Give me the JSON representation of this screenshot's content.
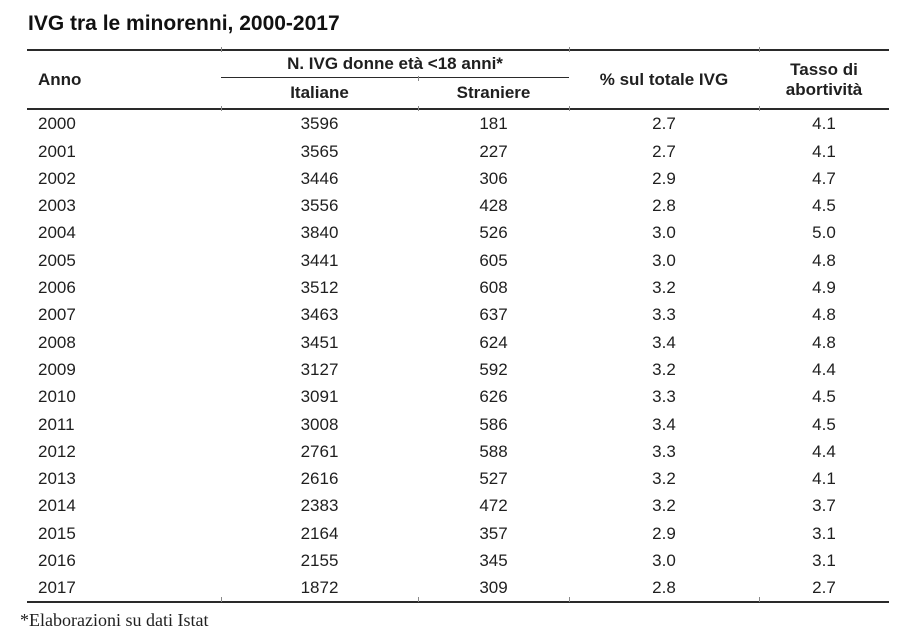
{
  "title": "IVG tra le minorenni, 2000-2017",
  "table": {
    "header": {
      "anno": "Anno",
      "group": "N. IVG donne età <18 anni*",
      "sub_italiane": "Italiane",
      "sub_straniere": "Straniere",
      "pct": "% sul totale IVG",
      "tasso": "Tasso di abortività"
    },
    "columns": [
      "Anno",
      "Italiane",
      "Straniere",
      "% sul totale IVG",
      "Tasso di abortività"
    ],
    "rows": [
      [
        "2000",
        "3596",
        "181",
        "2.7",
        "4.1"
      ],
      [
        "2001",
        "3565",
        "227",
        "2.7",
        "4.1"
      ],
      [
        "2002",
        "3446",
        "306",
        "2.9",
        "4.7"
      ],
      [
        "2003",
        "3556",
        "428",
        "2.8",
        "4.5"
      ],
      [
        "2004",
        "3840",
        "526",
        "3.0",
        "5.0"
      ],
      [
        "2005",
        "3441",
        "605",
        "3.0",
        "4.8"
      ],
      [
        "2006",
        "3512",
        "608",
        "3.2",
        "4.9"
      ],
      [
        "2007",
        "3463",
        "637",
        "3.3",
        "4.8"
      ],
      [
        "2008",
        "3451",
        "624",
        "3.4",
        "4.8"
      ],
      [
        "2009",
        "3127",
        "592",
        "3.2",
        "4.4"
      ],
      [
        "2010",
        "3091",
        "626",
        "3.3",
        "4.5"
      ],
      [
        "2011",
        "3008",
        "586",
        "3.4",
        "4.5"
      ],
      [
        "2012",
        "2761",
        "588",
        "3.3",
        "4.4"
      ],
      [
        "2013",
        "2616",
        "527",
        "3.2",
        "4.1"
      ],
      [
        "2014",
        "2383",
        "472",
        "3.2",
        "3.7"
      ],
      [
        "2015",
        "2164",
        "357",
        "2.9",
        "3.1"
      ],
      [
        "2016",
        "2155",
        "345",
        "3.0",
        "3.1"
      ],
      [
        "2017",
        "1872",
        "309",
        "2.8",
        "2.7"
      ]
    ]
  },
  "footnote": "*Elaborazioni su dati Istat",
  "colors": {
    "background": "#ffffff",
    "text": "#1f1f1f",
    "rule": "#2a2a2a",
    "junction_tick": "#8a8a8a"
  }
}
